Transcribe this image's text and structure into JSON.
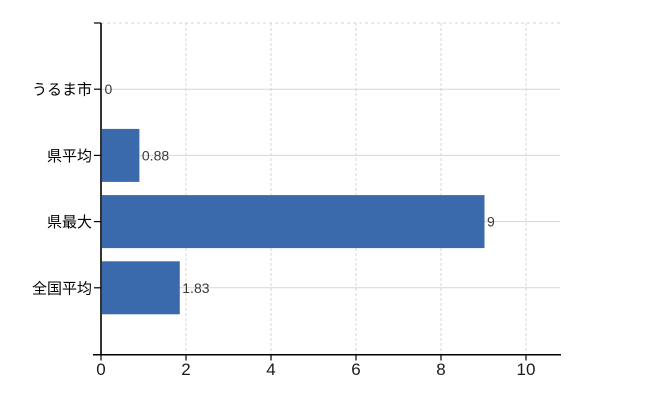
{
  "chart_data": {
    "type": "bar",
    "orientation": "horizontal",
    "title": "",
    "xlabel": "",
    "ylabel": "",
    "categories": [
      "うるま市",
      "県平均",
      "県最大",
      "全国平均"
    ],
    "values": [
      0,
      0.88,
      9,
      1.83
    ],
    "value_labels": [
      "0",
      "0.88",
      "9",
      "1.83"
    ],
    "x_ticks": [
      0,
      2,
      4,
      6,
      8,
      10
    ],
    "x_tick_labels": [
      "0",
      "2",
      "4",
      "6",
      "8",
      "10"
    ],
    "xlim": [
      0,
      10.8
    ],
    "legend": "none",
    "grid": {
      "vertical_gridlines": "dashed",
      "horizontal_gridlines": "solid",
      "top_border": "dashed"
    },
    "colors": {
      "bar": "#3a6aab",
      "gridline": "#d3d7d3",
      "axis": "#000000",
      "category_label": "#000000",
      "tick_label": "#1a1a1a",
      "value_label": "#3a3a3a",
      "background": "#ffffff"
    }
  }
}
